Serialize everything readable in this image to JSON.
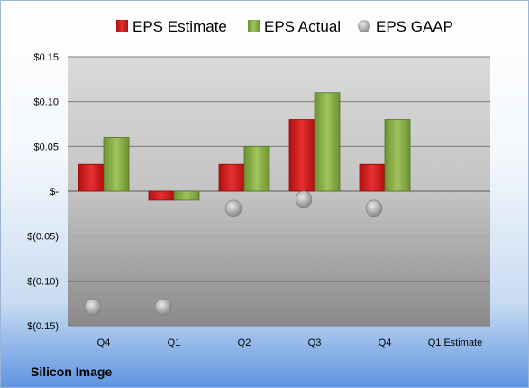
{
  "legend": {
    "estimate": "EPS Estimate",
    "actual": "EPS Actual",
    "gaap": "EPS GAAP"
  },
  "company": "Silicon Image",
  "colors": {
    "estimate": "#d42020",
    "actual": "#8cb04a",
    "gaap": "#a0a0a0"
  },
  "chart_data": {
    "type": "bar",
    "categories": [
      "Q4",
      "Q1",
      "Q2",
      "Q3",
      "Q4",
      "Q1 Estimate"
    ],
    "series": [
      {
        "name": "EPS Estimate",
        "values": [
          0.03,
          -0.01,
          0.03,
          0.08,
          0.03,
          null
        ]
      },
      {
        "name": "EPS Actual",
        "values": [
          0.06,
          -0.01,
          0.05,
          0.11,
          0.08,
          null
        ]
      },
      {
        "name": "EPS GAAP",
        "type": "scatter",
        "values": [
          -0.12,
          -0.12,
          -0.01,
          0.0,
          -0.01,
          null
        ]
      }
    ],
    "ylim": [
      -0.15,
      0.15
    ],
    "yticks": [
      0.15,
      0.1,
      0.05,
      0,
      -0.05,
      -0.1,
      -0.15
    ],
    "ytick_labels": [
      "$0.15",
      "$0.10",
      "$0.05",
      "$-",
      "$(0.05)",
      "$(0.10)",
      "$(0.15)"
    ],
    "grid": true,
    "legend_position": "top"
  }
}
